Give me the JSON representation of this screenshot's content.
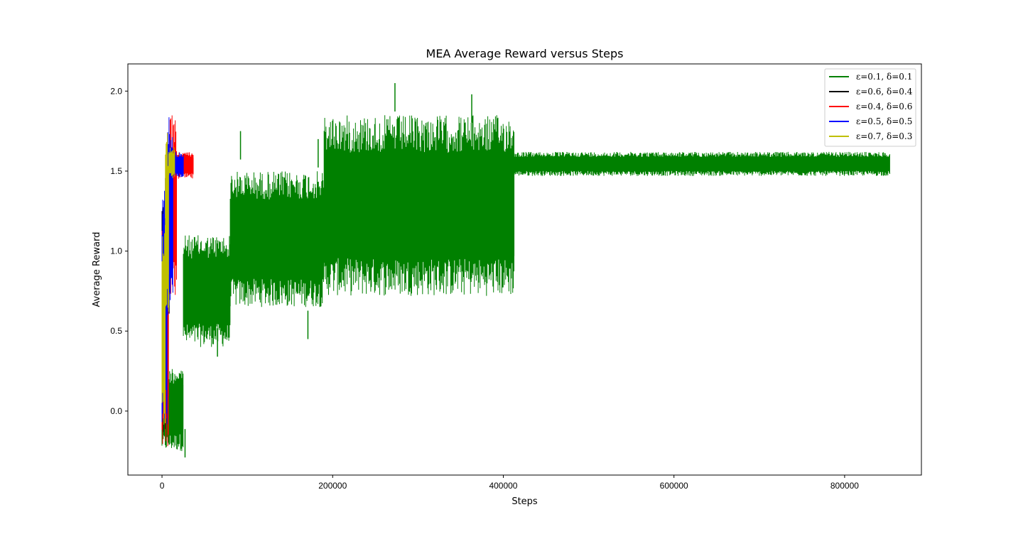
{
  "chart_data": {
    "type": "line",
    "title": "MEA Average Reward versus Steps",
    "xlabel": "Steps",
    "ylabel": "Average Reward",
    "xlim": [
      -40000,
      890000
    ],
    "ylim": [
      -0.4,
      2.17
    ],
    "xticks": [
      0,
      200000,
      400000,
      600000,
      800000
    ],
    "xtick_labels": [
      "0",
      "200000",
      "400000",
      "600000",
      "800000"
    ],
    "yticks": [
      0.0,
      0.5,
      1.0,
      1.5,
      2.0
    ],
    "ytick_labels": [
      "0.0",
      "0.5",
      "1.0",
      "1.5",
      "2.0"
    ],
    "grid": false,
    "legend_position": "top-right",
    "series": [
      {
        "name": "ε=0.1, δ=0.1",
        "color": "#008000",
        "segments": [
          {
            "x_start": 0,
            "x_end": 25000,
            "low": -0.25,
            "high": 0.28
          },
          {
            "x_start": 25000,
            "x_end": 80000,
            "low": 0.4,
            "high": 1.1
          },
          {
            "x_start": 80000,
            "x_end": 190000,
            "low": 0.65,
            "high": 1.5
          },
          {
            "x_start": 190000,
            "x_end": 413000,
            "low": 0.72,
            "high": 1.85
          },
          {
            "x_start": 413000,
            "x_end": 853000,
            "low": 1.47,
            "high": 1.62
          }
        ],
        "extremes": [
          {
            "x": 27000,
            "y": -0.29
          },
          {
            "x": 92000,
            "y": 1.75
          },
          {
            "x": 183000,
            "y": 1.7
          },
          {
            "x": 273000,
            "y": 2.05
          },
          {
            "x": 363000,
            "y": 1.98
          },
          {
            "x": 65000,
            "y": 0.34
          },
          {
            "x": 171000,
            "y": 0.45
          }
        ]
      },
      {
        "name": "ε=0.6, δ=0.4",
        "color": "#000000",
        "segments": [
          {
            "x_start": 0,
            "x_end": 4000,
            "low": -0.15,
            "high": 1.3
          },
          {
            "x_start": 4000,
            "x_end": 9000,
            "low": 0.5,
            "high": 1.55
          }
        ],
        "extremes": []
      },
      {
        "name": "ε=0.4, δ=0.6",
        "color": "#ff0000",
        "segments": [
          {
            "x_start": 0,
            "x_end": 8000,
            "low": -0.22,
            "high": 1.2
          },
          {
            "x_start": 8000,
            "x_end": 17000,
            "low": 0.7,
            "high": 1.85
          },
          {
            "x_start": 17000,
            "x_end": 37000,
            "low": 1.45,
            "high": 1.62
          }
        ],
        "extremes": []
      },
      {
        "name": "ε=0.5, δ=0.5",
        "color": "#0000ff",
        "segments": [
          {
            "x_start": 0,
            "x_end": 6000,
            "low": -0.18,
            "high": 1.4
          },
          {
            "x_start": 6000,
            "x_end": 13000,
            "low": 0.6,
            "high": 1.91
          },
          {
            "x_start": 13000,
            "x_end": 25000,
            "low": 1.46,
            "high": 1.62
          }
        ],
        "extremes": []
      },
      {
        "name": "ε=0.7, δ=0.3",
        "color": "#bfbf00",
        "segments": [
          {
            "x_start": 0,
            "x_end": 4000,
            "low": -0.1,
            "high": 1.2
          },
          {
            "x_start": 4000,
            "x_end": 8000,
            "low": 0.6,
            "high": 1.76
          },
          {
            "x_start": 8000,
            "x_end": 15000,
            "low": 1.45,
            "high": 1.65
          }
        ],
        "extremes": []
      }
    ]
  }
}
